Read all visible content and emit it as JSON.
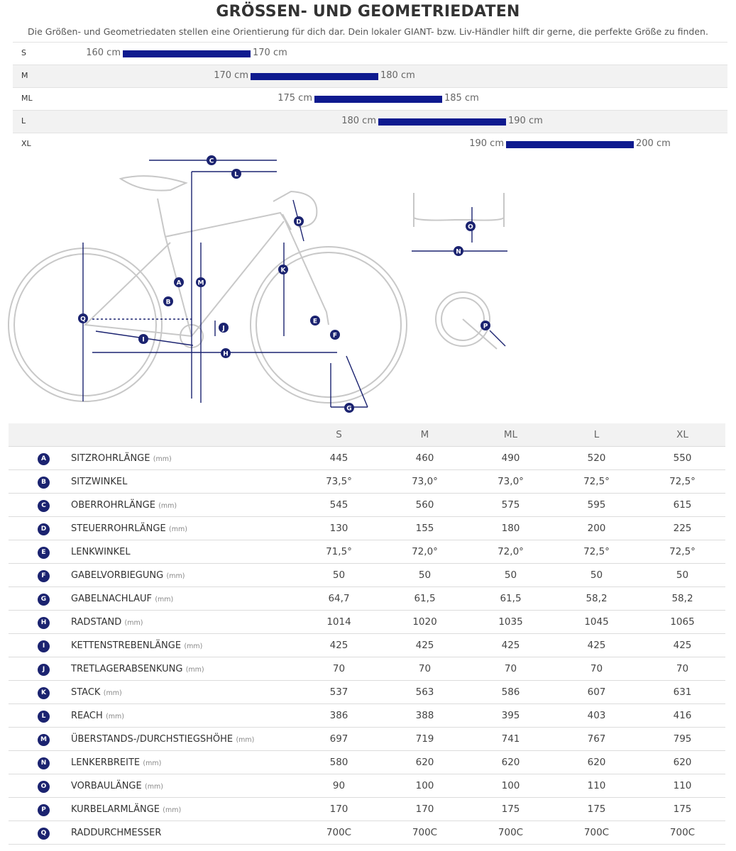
{
  "header": {
    "title": "GRÖSSEN- UND GEOMETRIEDATEN",
    "subtitle": "Die Größen- und Geometriedaten stellen eine Orientierung für dich dar. Dein lokaler GIANT- bzw. Liv-Händler hilft dir gerne, die perfekte Größe zu finden."
  },
  "sizes": [
    {
      "size": "S",
      "from": {
        "value": 160,
        "label": "160 cm"
      },
      "to": {
        "value": 170,
        "label": "170 cm"
      }
    },
    {
      "size": "M",
      "from": {
        "value": 170,
        "label": "170 cm"
      },
      "to": {
        "value": 180,
        "label": "180 cm"
      }
    },
    {
      "size": "ML",
      "from": {
        "value": 175,
        "label": "175 cm"
      },
      "to": {
        "value": 185,
        "label": "185 cm"
      }
    },
    {
      "size": "L",
      "from": {
        "value": 180,
        "label": "180 cm"
      },
      "to": {
        "value": 190,
        "label": "190 cm"
      }
    },
    {
      "size": "XL",
      "from": {
        "value": 190,
        "label": "190 cm"
      },
      "to": {
        "value": 200,
        "label": "200 cm"
      }
    }
  ],
  "table": {
    "columns": [
      "S",
      "M",
      "ML",
      "L",
      "XL"
    ],
    "rows": [
      {
        "letter": "A",
        "name": "SITZROHRLÄNGE",
        "unit": "(mm)",
        "values": [
          "445",
          "460",
          "490",
          "520",
          "550"
        ]
      },
      {
        "letter": "B",
        "name": "SITZWINKEL",
        "values": [
          "73,5°",
          "73,0°",
          "73,0°",
          "72,5°",
          "72,5°"
        ]
      },
      {
        "letter": "C",
        "name": "OBERROHRLÄNGE",
        "unit": "(mm)",
        "values": [
          "545",
          "560",
          "575",
          "595",
          "615"
        ]
      },
      {
        "letter": "D",
        "name": "STEUERROHRLÄNGE",
        "unit": "(mm)",
        "values": [
          "130",
          "155",
          "180",
          "200",
          "225"
        ]
      },
      {
        "letter": "E",
        "name": "LENKWINKEL",
        "values": [
          "71,5°",
          "72,0°",
          "72,0°",
          "72,5°",
          "72,5°"
        ]
      },
      {
        "letter": "F",
        "name": "GABELVORBIEGUNG",
        "unit": "(mm)",
        "values": [
          "50",
          "50",
          "50",
          "50",
          "50"
        ]
      },
      {
        "letter": "G",
        "name": "GABELNACHLAUF",
        "unit": "(mm)",
        "values": [
          "64,7",
          "61,5",
          "61,5",
          "58,2",
          "58,2"
        ]
      },
      {
        "letter": "H",
        "name": "RADSTAND",
        "unit": "(mm)",
        "values": [
          "1014",
          "1020",
          "1035",
          "1045",
          "1065"
        ]
      },
      {
        "letter": "I",
        "name": "KETTENSTREBENLÄNGE",
        "unit": "(mm)",
        "values": [
          "425",
          "425",
          "425",
          "425",
          "425"
        ]
      },
      {
        "letter": "J",
        "name": "TRETLAGERABSENKUNG",
        "unit": "(mm)",
        "values": [
          "70",
          "70",
          "70",
          "70",
          "70"
        ]
      },
      {
        "letter": "K",
        "name": "STACK",
        "unit": "(mm)",
        "values": [
          "537",
          "563",
          "586",
          "607",
          "631"
        ]
      },
      {
        "letter": "L",
        "name": "REACH",
        "unit": "(mm)",
        "values": [
          "386",
          "388",
          "395",
          "403",
          "416"
        ]
      },
      {
        "letter": "M",
        "name": "ÜBERSTANDS-/DURCHSTIEGSHÖHE",
        "unit": "(mm)",
        "values": [
          "697",
          "719",
          "741",
          "767",
          "795"
        ]
      },
      {
        "letter": "N",
        "name": "LENKERBREITE",
        "unit": "(mm)",
        "values": [
          "580",
          "620",
          "620",
          "620",
          "620"
        ]
      },
      {
        "letter": "O",
        "name": "VORBAULÄNGE",
        "unit": "(mm)",
        "values": [
          "90",
          "100",
          "100",
          "110",
          "110"
        ]
      },
      {
        "letter": "P",
        "name": "KURBELARMLÄNGE",
        "unit": "(mm)",
        "values": [
          "170",
          "170",
          "175",
          "175",
          "175"
        ]
      },
      {
        "letter": "Q",
        "name": "RADDURCHMESSER",
        "values": [
          "700C",
          "700C",
          "700C",
          "700C",
          "700C"
        ]
      }
    ]
  }
}
